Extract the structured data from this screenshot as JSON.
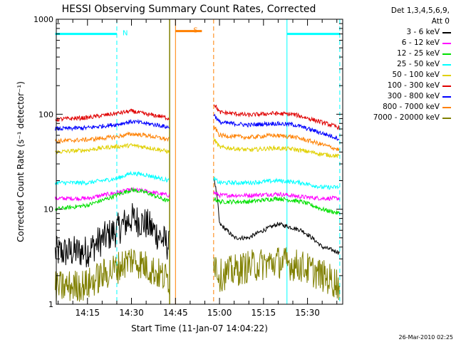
{
  "chart_data": {
    "type": "line",
    "title": "HESSI Observing Summary Count Rates, Corrected",
    "xlabel": "Start Time (11-Jan-07 14:04:22)",
    "ylabel": "Corrected Count Rate (s⁻¹ detector⁻¹)",
    "yscale": "log",
    "ylim": [
      1,
      1000
    ],
    "xlim": [
      "14:04:22",
      "15:42:00"
    ],
    "x_ticks": [
      "14:15",
      "14:30",
      "14:45",
      "15:00",
      "15:15",
      "15:30"
    ],
    "y_ticks": [
      "1",
      "10",
      "100",
      "1000"
    ],
    "grid": false,
    "legend_position": "right",
    "legend_header": [
      "Det 1,3,4,5,6,9,",
      "Att 0"
    ],
    "series": [
      {
        "name": "3 - 6 keV",
        "color": "#000000",
        "segments": [
          {
            "x": [
              "14:04",
              "14:15",
              "14:25",
              "14:30",
              "14:35",
              "14:40",
              "14:43"
            ],
            "y": [
              3.5,
              3.6,
              6,
              8,
              7,
              5,
              4
            ]
          },
          {
            "x": [
              "14:58",
              "15:00",
              "15:05",
              "15:10",
              "15:15",
              "15:20",
              "15:28",
              "15:35",
              "15:41"
            ],
            "y": [
              22,
              7,
              5,
              5,
              6,
              7,
              6,
              4,
              3.5
            ]
          }
        ]
      },
      {
        "name": "6 - 12 keV",
        "color": "#ff00ff",
        "segments": [
          {
            "x": [
              "14:04",
              "14:15",
              "14:25",
              "14:30",
              "14:35",
              "14:40",
              "14:43"
            ],
            "y": [
              13,
              13,
              15,
              16,
              15.5,
              14.5,
              14
            ]
          },
          {
            "x": [
              "14:58",
              "15:00",
              "15:10",
              "15:20",
              "15:28",
              "15:35",
              "15:41"
            ],
            "y": [
              15,
              14,
              14,
              14.5,
              13.5,
              13,
              13
            ]
          }
        ]
      },
      {
        "name": "12 - 25 keV",
        "color": "#00e000",
        "segments": [
          {
            "x": [
              "14:04",
              "14:15",
              "14:22",
              "14:30",
              "14:35",
              "14:40",
              "14:43"
            ],
            "y": [
              10,
              11,
              13,
              16,
              15,
              13,
              12
            ]
          },
          {
            "x": [
              "14:58",
              "15:00",
              "15:10",
              "15:20",
              "15:28",
              "15:35",
              "15:41"
            ],
            "y": [
              13,
              12,
              12,
              13,
              12,
              10,
              9
            ]
          }
        ]
      },
      {
        "name": "25 - 50 keV",
        "color": "#00ffff",
        "segments": [
          {
            "x": [
              "14:04",
              "14:15",
              "14:25",
              "14:30",
              "14:35",
              "14:40",
              "14:43"
            ],
            "y": [
              19,
              19,
              21,
              24,
              23,
              21,
              20
            ]
          },
          {
            "x": [
              "14:58",
              "15:00",
              "15:10",
              "15:20",
              "15:28",
              "15:35",
              "15:41"
            ],
            "y": [
              21,
              19,
              19,
              20,
              19,
              17,
              17
            ]
          }
        ]
      },
      {
        "name": "50 - 100 keV",
        "color": "#e0d000",
        "segments": [
          {
            "x": [
              "14:04",
              "14:15",
              "14:22",
              "14:30",
              "14:35",
              "14:40",
              "14:43"
            ],
            "y": [
              40,
              42,
              45,
              47,
              45,
              42,
              40
            ]
          },
          {
            "x": [
              "14:58",
              "15:00",
              "15:10",
              "15:18",
              "15:25",
              "15:35",
              "15:41"
            ],
            "y": [
              55,
              45,
              42,
              44,
              43,
              38,
              36
            ]
          }
        ]
      },
      {
        "name": "100 - 300 keV",
        "color": "#e00000",
        "segments": [
          {
            "x": [
              "14:04",
              "14:15",
              "14:25",
              "14:30",
              "14:35",
              "14:40",
              "14:43"
            ],
            "y": [
              88,
              92,
              102,
              108,
              100,
              95,
              90
            ]
          },
          {
            "x": [
              "14:58",
              "15:00",
              "15:10",
              "15:18",
              "15:25",
              "15:35",
              "15:41"
            ],
            "y": [
              130,
              105,
              98,
              102,
              100,
              82,
              72
            ]
          }
        ]
      },
      {
        "name": "300 - 800 keV",
        "color": "#0000ff",
        "segments": [
          {
            "x": [
              "14:04",
              "14:15",
              "14:25",
              "14:30",
              "14:35",
              "14:40",
              "14:43"
            ],
            "y": [
              70,
              72,
              78,
              84,
              80,
              76,
              72
            ]
          },
          {
            "x": [
              "14:58",
              "15:00",
              "15:10",
              "15:18",
              "15:25",
              "15:35",
              "15:41"
            ],
            "y": [
              100,
              82,
              77,
              80,
              78,
              63,
              55
            ]
          }
        ]
      },
      {
        "name": "800 - 7000 keV",
        "color": "#ff8000",
        "segments": [
          {
            "x": [
              "14:04",
              "14:15",
              "14:25",
              "14:30",
              "14:35",
              "14:40",
              "14:43"
            ],
            "y": [
              52,
              54,
              58,
              62,
              60,
              56,
              54
            ]
          },
          {
            "x": [
              "14:58",
              "15:00",
              "15:10",
              "15:18",
              "15:25",
              "15:35",
              "15:41"
            ],
            "y": [
              75,
              60,
              57,
              60,
              58,
              48,
              42
            ]
          }
        ]
      },
      {
        "name": "7000 - 20000 keV",
        "color": "#808000",
        "segments": [
          {
            "x": [
              "14:04",
              "14:15",
              "14:25",
              "14:30",
              "14:35",
              "14:40",
              "14:43"
            ],
            "y": [
              1.5,
              1.6,
              2.4,
              3,
              2.5,
              2,
              1.8
            ]
          },
          {
            "x": [
              "14:58",
              "15:00",
              "15:10",
              "15:20",
              "15:28",
              "15:35",
              "15:41"
            ],
            "y": [
              3,
              2,
              2.5,
              2.8,
              2.5,
              2,
              1.6
            ]
          }
        ]
      }
    ],
    "annotations": [
      {
        "label": "N",
        "color": "#00ffff",
        "level": 700,
        "bars": [
          [
            "14:04",
            "14:25"
          ],
          [
            "15:23",
            "15:41"
          ]
        ],
        "dashed_edges": [
          "14:25",
          "15:41"
        ],
        "solid_edges": [
          "15:23"
        ]
      },
      {
        "label": "S",
        "color": "#ff8000",
        "level": 750,
        "bars": [
          [
            "14:45",
            "14:54"
          ]
        ],
        "dashed_edges": [
          "14:58"
        ],
        "solid_edges": [
          "14:45"
        ]
      }
    ],
    "gap": {
      "color": "#808000",
      "from": "14:43",
      "to": "14:58"
    }
  },
  "footer": {
    "timestamp": "26-Mar-2010 02:25"
  }
}
